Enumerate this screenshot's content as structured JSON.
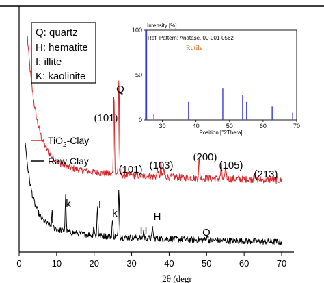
{
  "chart_data": [
    {
      "type": "line",
      "xlabel": "2θ (degr",
      "xlim": [
        0,
        70
      ],
      "x_ticks": [
        "0",
        "10",
        "20",
        "30",
        "40",
        "50",
        "60",
        "70"
      ],
      "key_box": [
        "Q: quartz",
        "H: hematite",
        "I: illite",
        "K: kaolinite"
      ],
      "legend": [
        {
          "name": "TiO2-Clay",
          "color": "#d6262b"
        },
        {
          "name": "Raw Clay",
          "color": "#000000"
        }
      ],
      "series": [
        {
          "name": "TiO2-Clay",
          "color": "#d6262b",
          "peak_labels": [
            {
              "x": 25.3,
              "label": "(101)"
            },
            {
              "x": 26.6,
              "label": "Q"
            },
            {
              "x": 37.8,
              "label": "(103)"
            },
            {
              "x": 48.0,
              "label": "(200)"
            },
            {
              "x": 53.9,
              "label": "(105)"
            },
            {
              "x": 62.7,
              "label": "(213)"
            }
          ],
          "peaks": [
            {
              "x": 25.3,
              "height": 0.72
            },
            {
              "x": 26.6,
              "height": 0.85
            },
            {
              "x": 36.9,
              "height": 0.08
            },
            {
              "x": 37.8,
              "height": 0.12
            },
            {
              "x": 38.6,
              "height": 0.07
            },
            {
              "x": 48.0,
              "height": 0.17
            },
            {
              "x": 53.9,
              "height": 0.12
            },
            {
              "x": 55.1,
              "height": 0.1
            },
            {
              "x": 62.7,
              "height": 0.08
            }
          ]
        },
        {
          "name": "Raw Clay",
          "color": "#000000",
          "peak_labels": [
            {
              "x": 8.8,
              "label": "I"
            },
            {
              "x": 12.4,
              "label": "k"
            },
            {
              "x": 20.9,
              "label": "I"
            },
            {
              "x": 24.9,
              "label": "k"
            },
            {
              "x": 26.6,
              "label": "(101)"
            },
            {
              "x": 33.2,
              "label": "H"
            },
            {
              "x": 35.6,
              "label": "H"
            },
            {
              "x": 50.1,
              "label": "Q"
            }
          ],
          "peaks": [
            {
              "x": 8.8,
              "height": 0.12
            },
            {
              "x": 12.4,
              "height": 0.3
            },
            {
              "x": 19.9,
              "height": 0.08
            },
            {
              "x": 20.9,
              "height": 0.25
            },
            {
              "x": 24.9,
              "height": 0.14
            },
            {
              "x": 26.6,
              "height": 0.42
            },
            {
              "x": 33.2,
              "height": 0.06
            },
            {
              "x": 35.6,
              "height": 0.1
            },
            {
              "x": 50.1,
              "height": 0.05
            }
          ]
        }
      ]
    },
    {
      "type": "bar",
      "title": "Intensity [%]",
      "xlabel": "Position [°2Theta]",
      "xlim": [
        25,
        70
      ],
      "ylim": [
        0,
        100
      ],
      "x_ticks": [
        30,
        40,
        50,
        60,
        70
      ],
      "y_ticks": [
        0,
        50,
        100
      ],
      "annotations": [
        {
          "text": "Ref. Pattern: Anatase, 00-001-0562",
          "color": "#000000"
        },
        {
          "text": "Rutile",
          "color": "#c8651a"
        }
      ],
      "series": [
        {
          "name": "Anatase",
          "color": "#3a3ad6",
          "x": [
            25.3,
            37.8,
            48.0,
            53.9,
            55.1,
            62.7,
            68.8
          ],
          "values": [
            100,
            20,
            35,
            28,
            20,
            15,
            8
          ]
        },
        {
          "name": "Rutile",
          "color": "#e0802a",
          "x": [
            27.4
          ],
          "values": [
            6
          ]
        }
      ]
    }
  ]
}
